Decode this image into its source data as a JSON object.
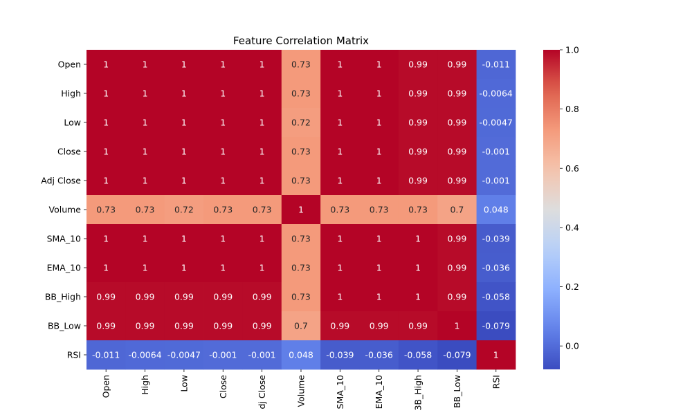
{
  "chart_data": {
    "type": "heatmap",
    "title": "Feature Correlation Matrix",
    "colormap": "coolwarm",
    "vmin": -0.079,
    "vmax": 1.0,
    "x_labels": [
      "Open",
      "High",
      "Low",
      "Close",
      "dj Close",
      "Volume",
      "SMA_10",
      "EMA_10",
      "3B_High",
      "BB_Low",
      "RSI"
    ],
    "y_labels": [
      "Open",
      "High",
      "Low",
      "Close",
      "Adj Close",
      "Volume",
      "SMA_10",
      "EMA_10",
      "BB_High",
      "BB_Low",
      "RSI"
    ],
    "values": [
      [
        1,
        1,
        1,
        1,
        1,
        0.73,
        1,
        1,
        0.99,
        0.99,
        -0.011
      ],
      [
        1,
        1,
        1,
        1,
        1,
        0.73,
        1,
        1,
        0.99,
        0.99,
        -0.0064
      ],
      [
        1,
        1,
        1,
        1,
        1,
        0.72,
        1,
        1,
        0.99,
        0.99,
        -0.0047
      ],
      [
        1,
        1,
        1,
        1,
        1,
        0.73,
        1,
        1,
        0.99,
        0.99,
        -0.001
      ],
      [
        1,
        1,
        1,
        1,
        1,
        0.73,
        1,
        1,
        0.99,
        0.99,
        -0.001
      ],
      [
        0.73,
        0.73,
        0.72,
        0.73,
        0.73,
        1,
        0.73,
        0.73,
        0.73,
        0.7,
        0.048
      ],
      [
        1,
        1,
        1,
        1,
        1,
        0.73,
        1,
        1,
        1,
        0.99,
        -0.039
      ],
      [
        1,
        1,
        1,
        1,
        1,
        0.73,
        1,
        1,
        1,
        0.99,
        -0.036
      ],
      [
        0.99,
        0.99,
        0.99,
        0.99,
        0.99,
        0.73,
        1,
        1,
        1,
        0.99,
        -0.058
      ],
      [
        0.99,
        0.99,
        0.99,
        0.99,
        0.99,
        0.7,
        0.99,
        0.99,
        0.99,
        1,
        -0.079
      ],
      [
        -0.011,
        -0.0064,
        -0.0047,
        -0.001,
        -0.001,
        0.048,
        -0.039,
        -0.036,
        -0.058,
        -0.079,
        1
      ]
    ],
    "cell_labels": [
      [
        "1",
        "1",
        "1",
        "1",
        "1",
        "0.73",
        "1",
        "1",
        "0.99",
        "0.99",
        "-0.011"
      ],
      [
        "1",
        "1",
        "1",
        "1",
        "1",
        "0.73",
        "1",
        "1",
        "0.99",
        "0.99",
        "-0.0064"
      ],
      [
        "1",
        "1",
        "1",
        "1",
        "1",
        "0.72",
        "1",
        "1",
        "0.99",
        "0.99",
        "-0.0047"
      ],
      [
        "1",
        "1",
        "1",
        "1",
        "1",
        "0.73",
        "1",
        "1",
        "0.99",
        "0.99",
        "-0.001"
      ],
      [
        "1",
        "1",
        "1",
        "1",
        "1",
        "0.73",
        "1",
        "1",
        "0.99",
        "0.99",
        "-0.001"
      ],
      [
        "0.73",
        "0.73",
        "0.72",
        "0.73",
        "0.73",
        "1",
        "0.73",
        "0.73",
        "0.73",
        "0.7",
        "0.048"
      ],
      [
        "1",
        "1",
        "1",
        "1",
        "1",
        "0.73",
        "1",
        "1",
        "1",
        "0.99",
        "-0.039"
      ],
      [
        "1",
        "1",
        "1",
        "1",
        "1",
        "0.73",
        "1",
        "1",
        "1",
        "0.99",
        "-0.036"
      ],
      [
        "0.99",
        "0.99",
        "0.99",
        "0.99",
        "0.99",
        "0.73",
        "1",
        "1",
        "1",
        "0.99",
        "-0.058"
      ],
      [
        "0.99",
        "0.99",
        "0.99",
        "0.99",
        "0.99",
        "0.7",
        "0.99",
        "0.99",
        "0.99",
        "1",
        "-0.079"
      ],
      [
        "-0.011",
        "-0.0064",
        "-0.0047",
        "-0.001",
        "-0.001",
        "0.048",
        "-0.039",
        "-0.036",
        "-0.058",
        "-0.079",
        "1"
      ]
    ],
    "colorbar": {
      "ticks": [
        1.0,
        0.8,
        0.6,
        0.4,
        0.2,
        0.0
      ],
      "tick_labels": [
        "1.0",
        "0.8",
        "0.6",
        "0.4",
        "0.2",
        "0.0"
      ]
    }
  }
}
